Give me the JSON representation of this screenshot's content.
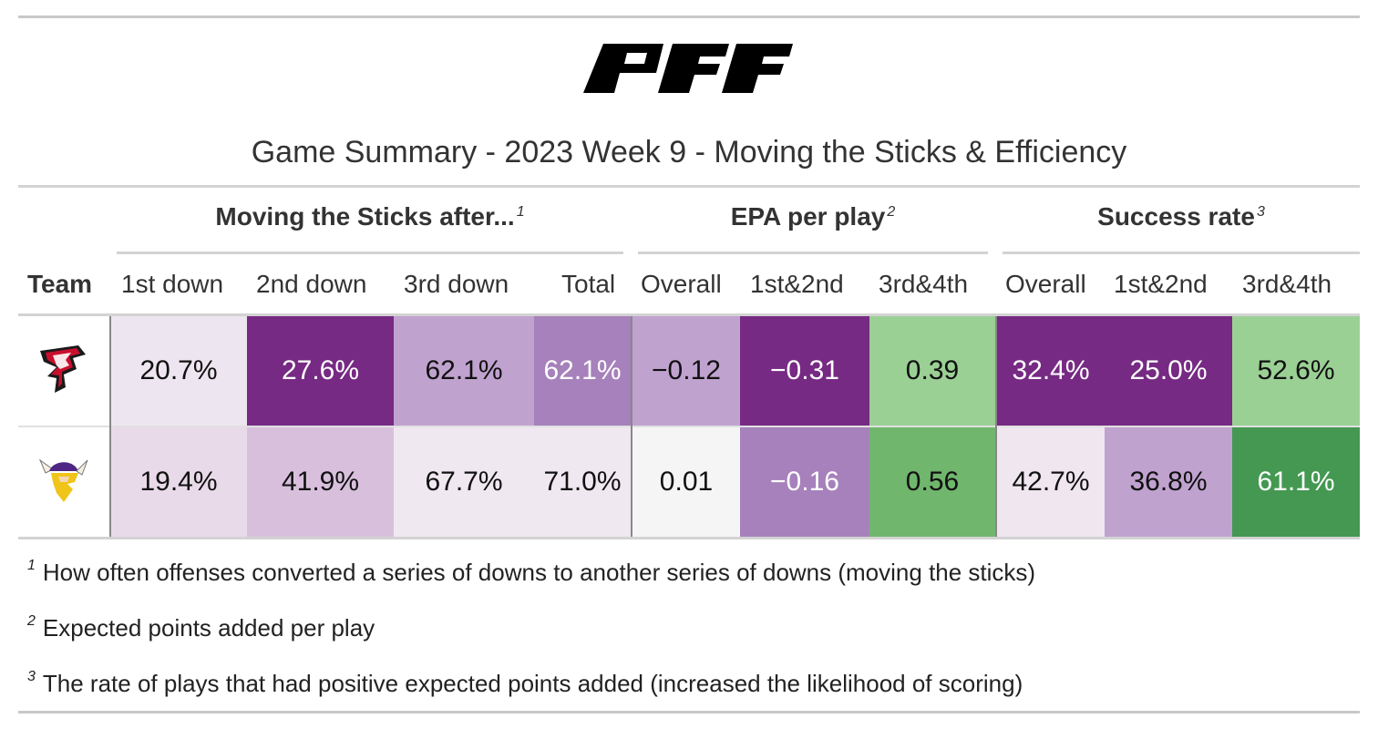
{
  "header": {
    "logo_text": "PFF",
    "title": "Game Summary - 2023 Week 9 - Moving the Sticks & Efficiency"
  },
  "spanners": [
    {
      "label": "Moving the Sticks after...",
      "mark": "1"
    },
    {
      "label": "EPA per play",
      "mark": "2"
    },
    {
      "label": "Success rate",
      "mark": "3"
    }
  ],
  "columns": [
    "Team",
    "1st down",
    "2nd down",
    "3rd down",
    "Total",
    "Overall",
    "1st&2nd",
    "3rd&4th",
    "Overall",
    "1st&2nd",
    "3rd&4th"
  ],
  "rows": [
    {
      "team_icon": "falcons-logo-icon",
      "cells": [
        {
          "value": "20.7%",
          "bg": "#ede5ef",
          "fg": "#111111"
        },
        {
          "value": "27.6%",
          "bg": "#762a83",
          "fg": "#ffffff"
        },
        {
          "value": "62.1%",
          "bg": "#c0a2cf",
          "fg": "#111111"
        },
        {
          "value": "62.1%",
          "bg": "#a681bb",
          "fg": "#ffffff"
        },
        {
          "value": "−0.12",
          "bg": "#c0a2cf",
          "fg": "#111111"
        },
        {
          "value": "−0.31",
          "bg": "#762a83",
          "fg": "#ffffff"
        },
        {
          "value": "0.39",
          "bg": "#9bd095",
          "fg": "#111111"
        },
        {
          "value": "32.4%",
          "bg": "#762a83",
          "fg": "#ffffff"
        },
        {
          "value": "25.0%",
          "bg": "#762a83",
          "fg": "#ffffff"
        },
        {
          "value": "52.6%",
          "bg": "#9bd095",
          "fg": "#111111"
        }
      ]
    },
    {
      "team_icon": "vikings-logo-icon",
      "cells": [
        {
          "value": "19.4%",
          "bg": "#e9dae9",
          "fg": "#111111"
        },
        {
          "value": "41.9%",
          "bg": "#d8c0dd",
          "fg": "#111111"
        },
        {
          "value": "67.7%",
          "bg": "#f0e8f0",
          "fg": "#111111"
        },
        {
          "value": "71.0%",
          "bg": "#f0e8f0",
          "fg": "#111111"
        },
        {
          "value": "0.01",
          "bg": "#f5f5f5",
          "fg": "#111111"
        },
        {
          "value": "−0.16",
          "bg": "#a681bb",
          "fg": "#ffffff"
        },
        {
          "value": "0.56",
          "bg": "#70b66d",
          "fg": "#111111"
        },
        {
          "value": "42.7%",
          "bg": "#efe6f0",
          "fg": "#111111"
        },
        {
          "value": "36.8%",
          "bg": "#c0a2cf",
          "fg": "#111111"
        },
        {
          "value": "61.1%",
          "bg": "#449851",
          "fg": "#ffffff"
        }
      ]
    }
  ],
  "footnotes": [
    {
      "mark": "1",
      "text": "How often offenses converted a series of downs to another series of downs (moving the sticks)"
    },
    {
      "mark": "2",
      "text": "Expected points added per play"
    },
    {
      "mark": "3",
      "text": "The rate of plays that had positive expected points added (increased the likelihood of scoring)"
    }
  ]
}
